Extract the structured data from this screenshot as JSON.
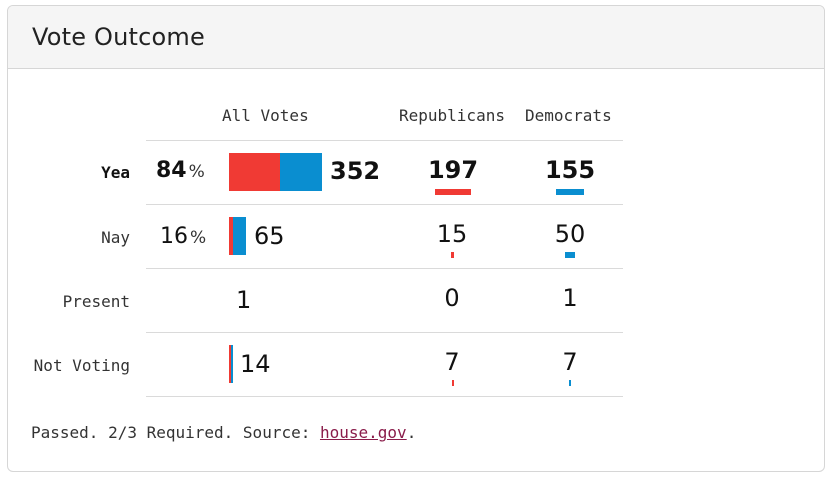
{
  "title": "Vote Outcome",
  "columns": {
    "all_votes": "All Votes",
    "republicans": "Republicans",
    "democrats": "Democrats"
  },
  "colors": {
    "republican": "#f03a34",
    "democrat": "#0a8ed0",
    "link": "#8a1c4a"
  },
  "rows": {
    "yea": {
      "label": "Yea",
      "percent": "84",
      "percent_sym": "%",
      "total": "352",
      "republicans": "197",
      "democrats": "155",
      "rep_share": 0.56,
      "dem_share": 0.44
    },
    "nay": {
      "label": "Nay",
      "percent": "16",
      "percent_sym": "%",
      "total": "65",
      "republicans": "15",
      "democrats": "50"
    },
    "present": {
      "label": "Present",
      "total": "1",
      "republicans": "0",
      "democrats": "1"
    },
    "not_voting": {
      "label": "Not Voting",
      "total": "14",
      "republicans": "7",
      "democrats": "7"
    }
  },
  "footer": {
    "text": "Passed. 2/3 Required. Source: ",
    "link": "house.gov",
    "end": "."
  }
}
